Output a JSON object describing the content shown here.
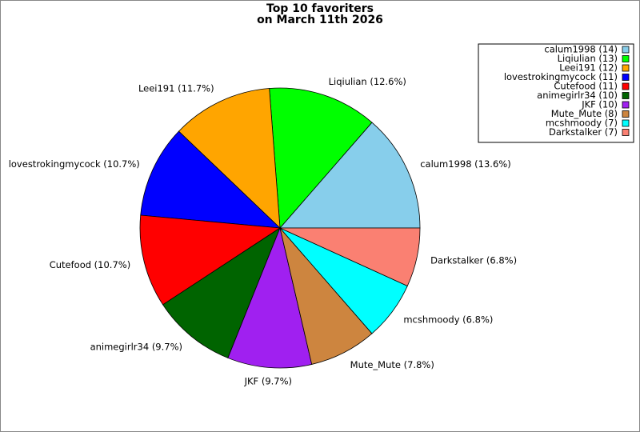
{
  "chart_data": {
    "type": "pie",
    "title": "Top 10 favoriters",
    "subtitle": "on March 11th 2026",
    "categories": [
      "calum1998 (14)",
      "Liqiulian (13)",
      "Leei191 (12)",
      "lovestrokingmycock (11)",
      "Cutefood (11)",
      "animegirlr34 (10)",
      "JKF (10)",
      "Mute_Mute (8)",
      "mcshmoody (7)",
      "Darkstalker (7)"
    ],
    "values": [
      14,
      13,
      12,
      11,
      11,
      10,
      10,
      8,
      7,
      7
    ],
    "value_labels": [
      "calum1998 (13.6%)",
      "Liqiulian (12.6%)",
      "Leei191 (11.7%)",
      "lovestrokingmycock (10.7%)",
      "Cutefood (10.7%)",
      "animegirlr34 (9.7%)",
      "JKF (9.7%)",
      "Mute_Mute (7.8%)",
      "mcshmoody (6.8%)",
      "Darkstalker (6.8%)"
    ],
    "colors": [
      "#87ceeb",
      "#00ff00",
      "#ffa500",
      "#0000ff",
      "#ff0000",
      "#006400",
      "#a020f0",
      "#cd853f",
      "#00ffff",
      "#fa8072"
    ],
    "legend": "upper right"
  }
}
